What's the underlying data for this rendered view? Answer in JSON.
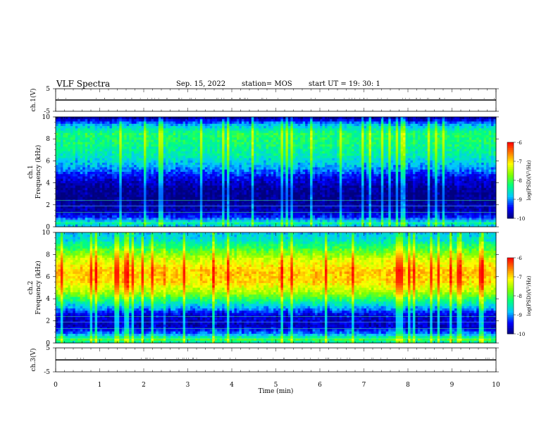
{
  "header": {
    "title": "VLF Spectra",
    "date": "Sep. 15, 2022",
    "station": "station= MOS",
    "start": "start  UT =  19: 30: 1"
  },
  "colors": {
    "spectrogram_scale": [
      "#000080",
      "#0000ff",
      "#00c8ff",
      "#00ff80",
      "#80ff00",
      "#ffff00",
      "#ff8000",
      "#ff0000",
      "#ffffff"
    ]
  },
  "chart_data": [
    {
      "type": "line",
      "name": "ch1-waveform",
      "ylabel": "ch.1(V)",
      "ylim": [
        -5,
        5
      ],
      "yticks": [
        "5",
        "-5"
      ],
      "x": [
        0,
        10
      ],
      "y": [
        0,
        0
      ]
    },
    {
      "type": "heatmap",
      "name": "ch1-spectrogram",
      "ylabel": "ch.1",
      "ylabel2": "Frequency (kHz)",
      "ylim": [
        0,
        10
      ],
      "yticks": [
        "0",
        "2",
        "4",
        "6",
        "8",
        "10"
      ],
      "xlim": [
        0,
        10
      ],
      "profile": {
        "freq_khz": [
          0.0,
          0.3,
          0.8,
          1.5,
          2.5,
          3.5,
          4.5,
          5.5,
          6.5,
          7.5,
          8.5,
          9.3,
          10.0
        ],
        "log_psd": [
          -9.0,
          -8.4,
          -9.3,
          -9.8,
          -9.95,
          -9.9,
          -9.5,
          -8.9,
          -8.5,
          -8.3,
          -8.2,
          -8.9,
          -10.0
        ]
      },
      "colorbar": {
        "label": "log(PSD)(V²/Hz)",
        "ticks": [
          "-6",
          "-7",
          "-8",
          "-9",
          "-10"
        ],
        "range": [
          -10,
          -6
        ]
      }
    },
    {
      "type": "heatmap",
      "name": "ch2-spectrogram",
      "ylabel": "ch.2",
      "ylabel2": "Frequency (kHz)",
      "ylim": [
        0,
        10
      ],
      "yticks": [
        "0",
        "2",
        "4",
        "6",
        "8",
        "10"
      ],
      "xlim": [
        0,
        10
      ],
      "profile": {
        "freq_khz": [
          0.0,
          0.3,
          0.8,
          1.5,
          2.5,
          3.5,
          4.5,
          5.5,
          6.5,
          7.5,
          8.5,
          9.3,
          10.0
        ],
        "log_psd": [
          -8.6,
          -8.0,
          -9.0,
          -9.7,
          -9.6,
          -8.6,
          -7.6,
          -7.0,
          -6.9,
          -7.3,
          -8.0,
          -8.6,
          -8.8
        ]
      },
      "colorbar": {
        "label": "log(PSD)(V²/Hz)",
        "ticks": [
          "-6",
          "-7",
          "-8",
          "-9",
          "-10"
        ],
        "range": [
          -10,
          -6
        ]
      }
    },
    {
      "type": "line",
      "name": "ch3-waveform",
      "ylabel": "ch.3(V)",
      "ylim": [
        -5,
        5
      ],
      "yticks": [
        "5",
        "-5"
      ],
      "x": [
        0,
        10
      ],
      "y": [
        0,
        0
      ]
    }
  ],
  "xaxis": {
    "label": "Time  (min)",
    "ticks": [
      "0",
      "1",
      "2",
      "3",
      "4",
      "5",
      "6",
      "7",
      "8",
      "9",
      "10"
    ]
  }
}
